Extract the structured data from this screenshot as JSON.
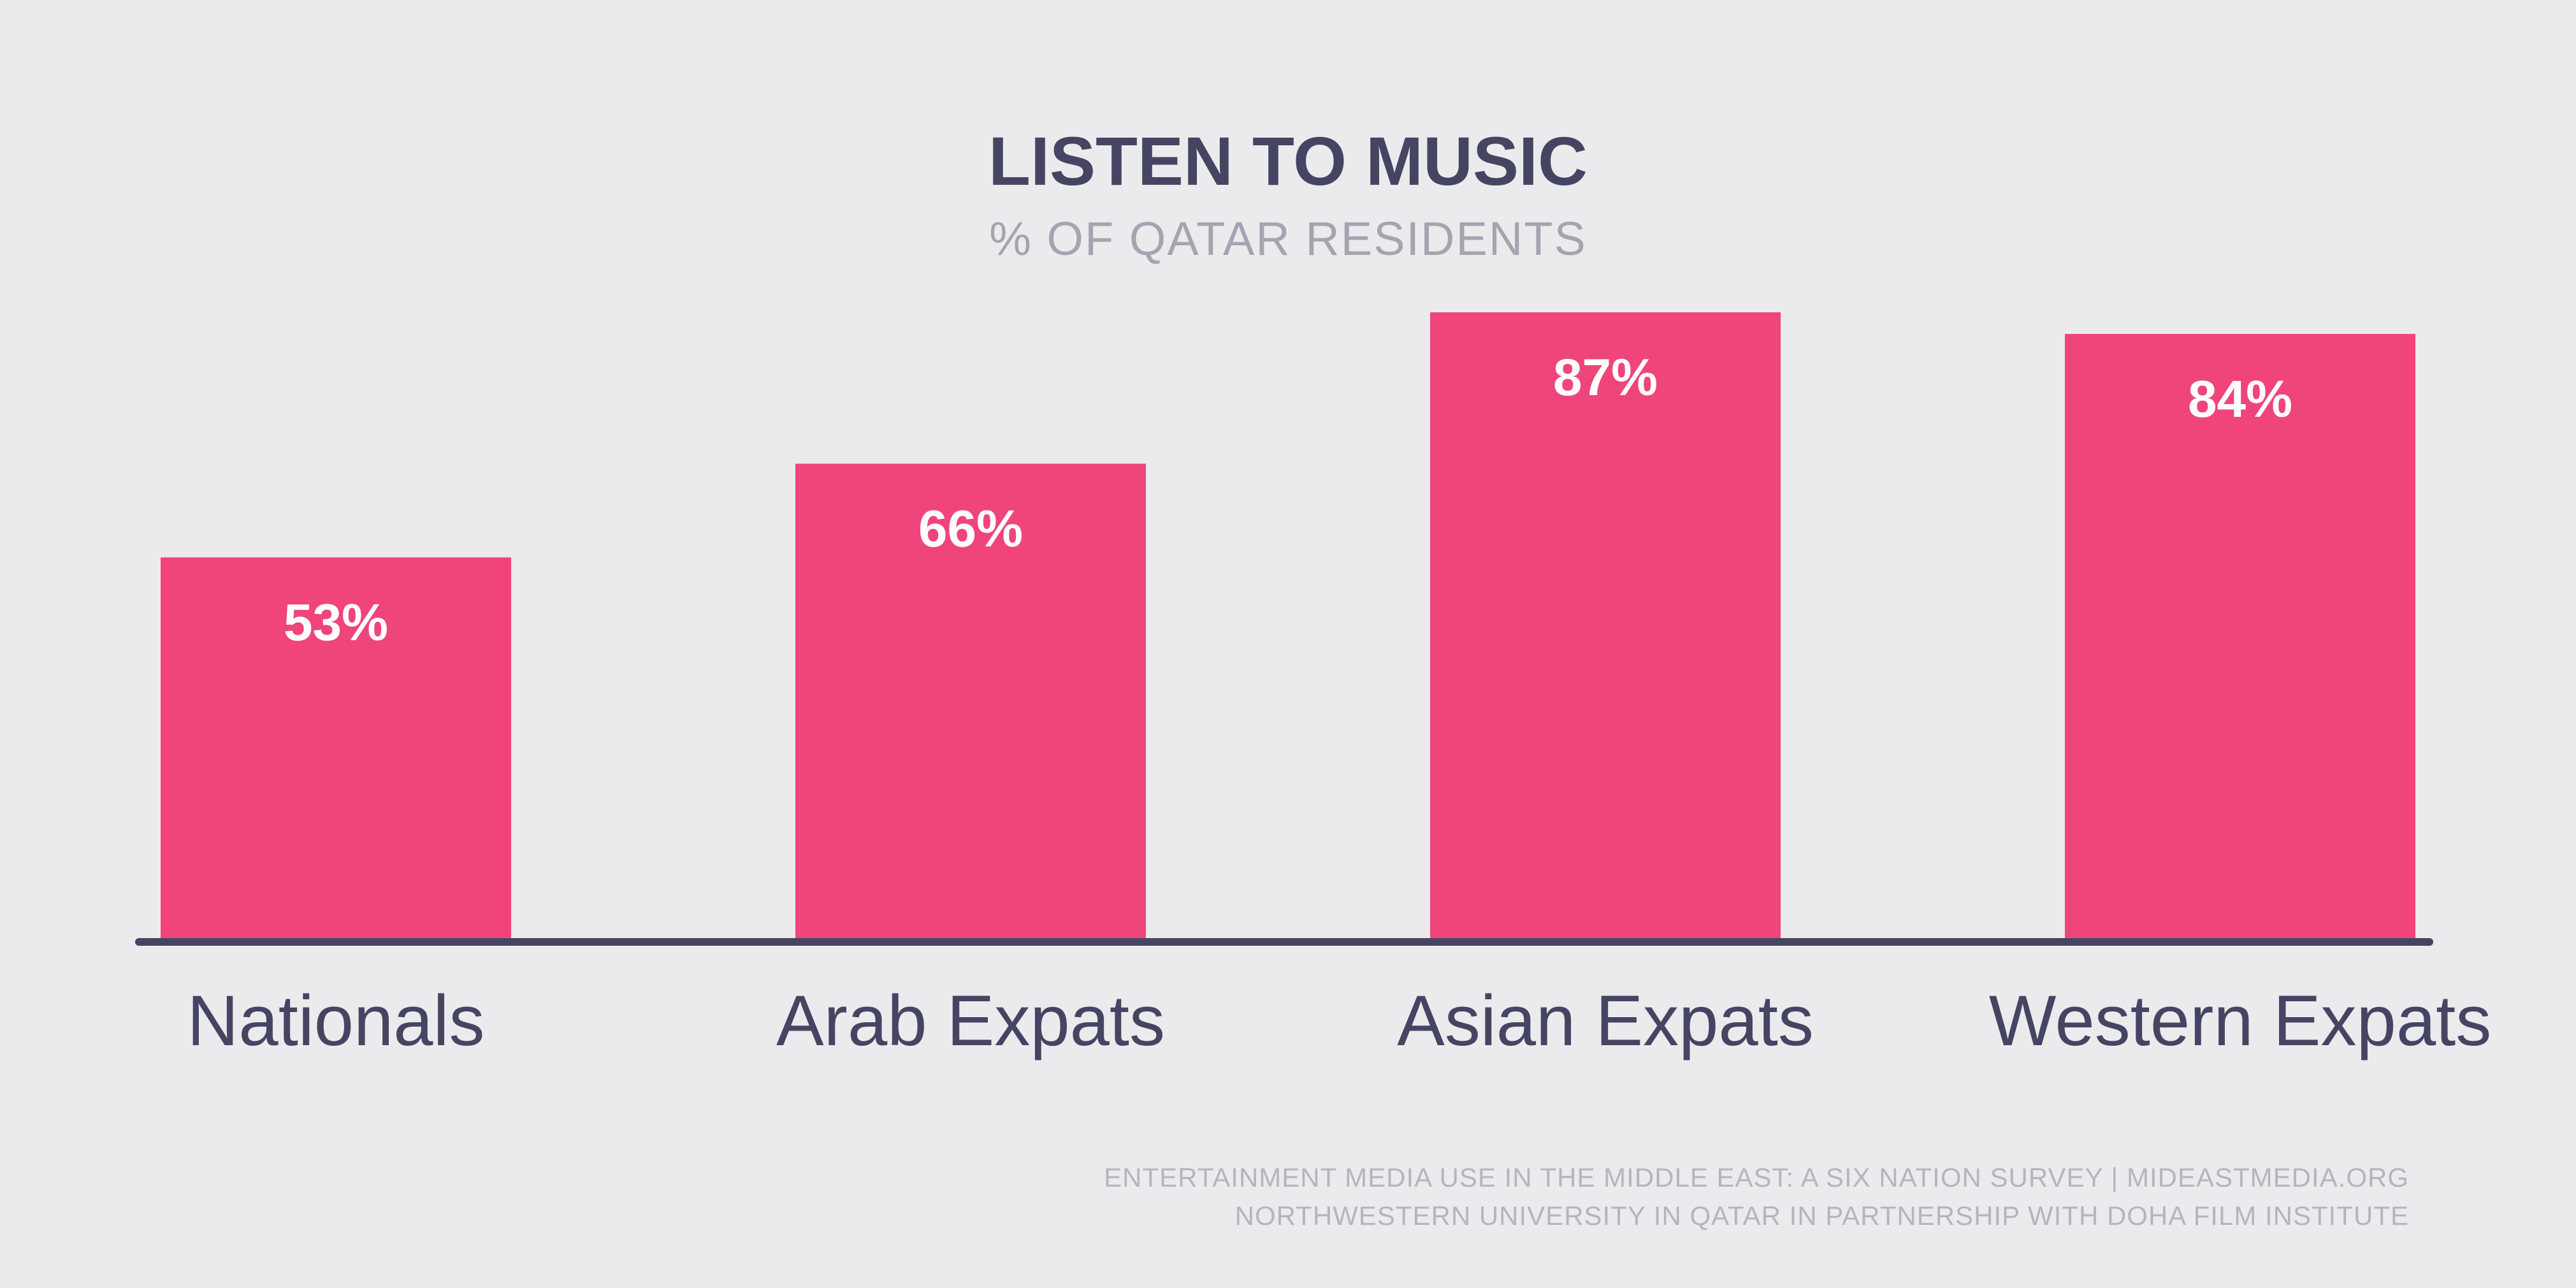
{
  "chart_data": {
    "type": "bar",
    "title": "LISTEN TO MUSIC",
    "subtitle": "% OF QATAR RESIDENTS",
    "categories": [
      "Nationals",
      "Arab Expats",
      "Asian Expats",
      "Western Expats"
    ],
    "values": [
      53,
      66,
      87,
      84
    ],
    "value_labels": [
      "53%",
      "66%",
      "87%",
      "84%"
    ],
    "ylim": [
      0,
      100
    ],
    "grid": false,
    "legend": "none"
  },
  "source": {
    "line1": "ENTERTAINMENT MEDIA USE IN THE MIDDLE EAST: A SIX NATION SURVEY | MIDEASTMEDIA.ORG",
    "line2": "NORTHWESTERN UNIVERSITY IN QATAR IN PARTNERSHIP WITH DOHA FILM INSTITUTE"
  },
  "colors": {
    "background": "#ebebed",
    "bar": "#ef457b",
    "title": "#454563",
    "subtitle": "#a5a5b1",
    "axis": "#454563",
    "category_text": "#454563",
    "value_text": "#ffffff",
    "source_text": "#b5b5be"
  }
}
